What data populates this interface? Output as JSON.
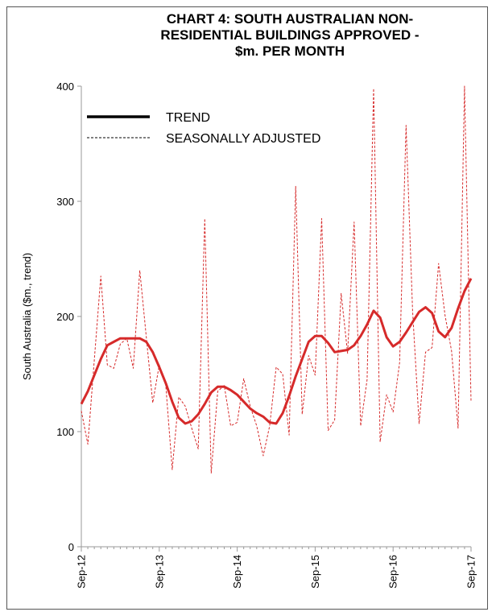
{
  "chart_data": {
    "type": "line",
    "title_lines": [
      "CHART 4: SOUTH AUSTRALIAN NON-",
      "RESIDENTIAL BUILDINGS APPROVED -",
      "$m. PER MONTH"
    ],
    "ylabel": "South Australia ($m., trend)",
    "ylim": [
      0,
      400
    ],
    "yticks": [
      0,
      100,
      200,
      300,
      400
    ],
    "xticks": [
      "Sep-12",
      "Sep-13",
      "Sep-14",
      "Sep-15",
      "Sep-16",
      "Sep-17"
    ],
    "x_count": 61,
    "x_tick_step": 12,
    "grid": false,
    "legend_position": "top-left",
    "series": [
      {
        "name": "TREND",
        "style": "solid-thick",
        "color": "#d62a2a",
        "values": [
          124,
          135,
          149,
          163,
          175,
          178,
          181,
          181,
          181,
          181,
          178,
          169,
          156,
          142,
          126,
          112,
          107,
          109,
          115,
          124,
          134,
          139,
          139,
          136,
          132,
          126,
          120,
          116,
          113,
          108,
          107,
          116,
          131,
          148,
          163,
          178,
          183,
          183,
          177,
          169,
          170,
          171,
          175,
          183,
          193,
          205,
          199,
          182,
          174,
          178,
          186,
          195,
          204,
          208,
          203,
          187,
          182,
          190,
          207,
          222,
          233
        ]
      },
      {
        "name": "SEASONALLY ADJUSTED",
        "style": "dashed-thin",
        "color": "#d62a2a",
        "values": [
          118,
          89,
          162,
          235,
          158,
          155,
          176,
          181,
          155,
          240,
          182,
          125,
          158,
          140,
          67,
          130,
          122,
          103,
          85,
          285,
          64,
          135,
          140,
          105,
          108,
          146,
          122,
          105,
          79,
          105,
          156,
          150,
          97,
          313,
          115,
          166,
          149,
          285,
          101,
          110,
          220,
          168,
          282,
          105,
          145,
          398,
          91,
          132,
          117,
          160,
          366,
          205,
          107,
          169,
          173,
          246,
          201,
          170,
          103,
          400,
          126
        ]
      }
    ]
  },
  "colors": {
    "series_red": "#d62a2a",
    "axis_gray": "#9a9a9a",
    "legend_black": "#000000"
  }
}
